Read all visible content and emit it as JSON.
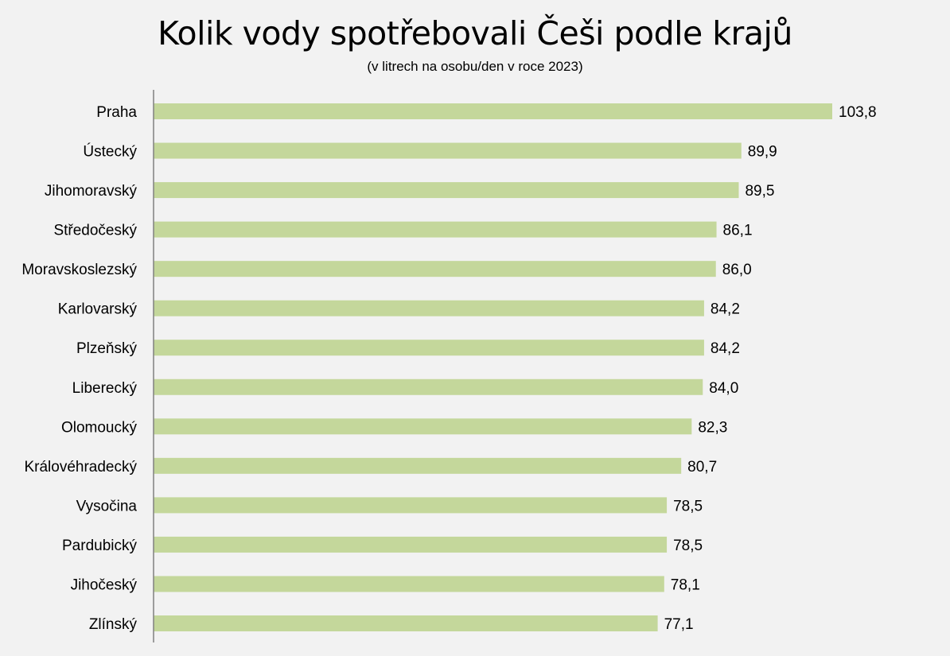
{
  "chart_data": {
    "type": "bar",
    "orientation": "horizontal",
    "title": "Kolik vody spotřebovali Češi podle krajů",
    "subtitle": "(v litrech na osobu/den v roce 2023)",
    "categories": [
      "Praha",
      "Ústecký",
      "Jihomoravský",
      "Středočeský",
      "Moravskoslezský",
      "Karlovarský",
      "Plzeňský",
      "Liberecký",
      "Olomoucký",
      "Královéhradecký",
      "Vysočina",
      "Pardubický",
      "Jihočeský",
      "Zlínský"
    ],
    "values": [
      103.8,
      89.9,
      89.5,
      86.1,
      86.0,
      84.2,
      84.2,
      84.0,
      82.3,
      80.7,
      78.5,
      78.5,
      78.1,
      77.1
    ],
    "data_labels": [
      "103,8",
      "89,9",
      "89,5",
      "86,1",
      "86,0",
      "84,2",
      "84,2",
      "84,0",
      "82,3",
      "80,7",
      "78,5",
      "78,5",
      "78,1",
      "77,1"
    ],
    "xlim": [
      0,
      116
    ],
    "grid": false,
    "legend": "none",
    "colors": {
      "bar": "#c4d79b",
      "background": "#f2f2f2",
      "axis": "#808080"
    }
  }
}
